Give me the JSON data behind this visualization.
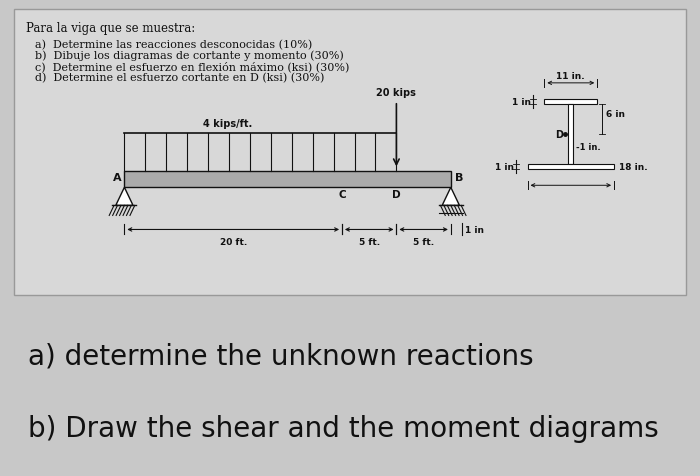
{
  "bg_color": "#c8c8c8",
  "box_bg": "#d8d8d8",
  "title": "Para la viga que se muestra:",
  "items": [
    "a)  Determine las reacciones desconocidas (10%)",
    "b)  Dibuje los diagramas de cortante y momento (30%)",
    "c)  Determine el esfuerzo en flexión máximo (ksi) (30%)",
    "d)  Determine el esfuerzo cortante en D (ksi) (30%)"
  ],
  "bottom_text_a": "a) determine the unknown reactions",
  "bottom_text_b": "b) Draw the shear and the moment diagrams",
  "beam_color": "#111111",
  "box_edge": "#999999",
  "bottom_bg": "#ffffff"
}
